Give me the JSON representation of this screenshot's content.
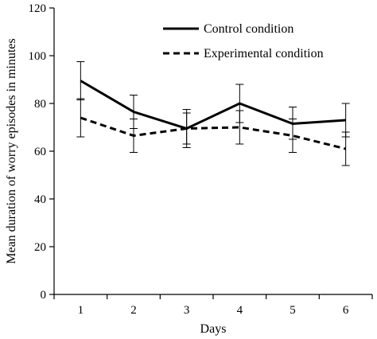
{
  "chart_data": {
    "type": "line",
    "xlabel": "Days",
    "ylabel": "Mean duration of worry episodes in minutes",
    "x": [
      1,
      2,
      3,
      4,
      5,
      6
    ],
    "xticks": [
      "1",
      "2",
      "3",
      "4",
      "5",
      "6"
    ],
    "ylim": [
      0,
      120
    ],
    "yticks": [
      "0",
      "20",
      "40",
      "60",
      "80",
      "100",
      "120"
    ],
    "grid": false,
    "legend_position": "top-right",
    "series": [
      {
        "name": "Control condition",
        "line_style": "solid",
        "color": "#000000",
        "values": [
          89.5,
          76.5,
          69.5,
          80,
          71.5,
          73
        ],
        "error_low": [
          81.5,
          69.5,
          61.5,
          72,
          65,
          66
        ],
        "error_high": [
          97.5,
          83.5,
          77.5,
          88,
          78.5,
          80
        ]
      },
      {
        "name": "Experimental condition",
        "line_style": "dashed",
        "color": "#000000",
        "values": [
          74,
          66.5,
          69.5,
          70,
          66.5,
          61
        ],
        "error_low": [
          66,
          59.5,
          63,
          63,
          59.5,
          54
        ],
        "error_high": [
          82,
          73.5,
          76,
          77,
          73.5,
          68
        ]
      }
    ]
  }
}
